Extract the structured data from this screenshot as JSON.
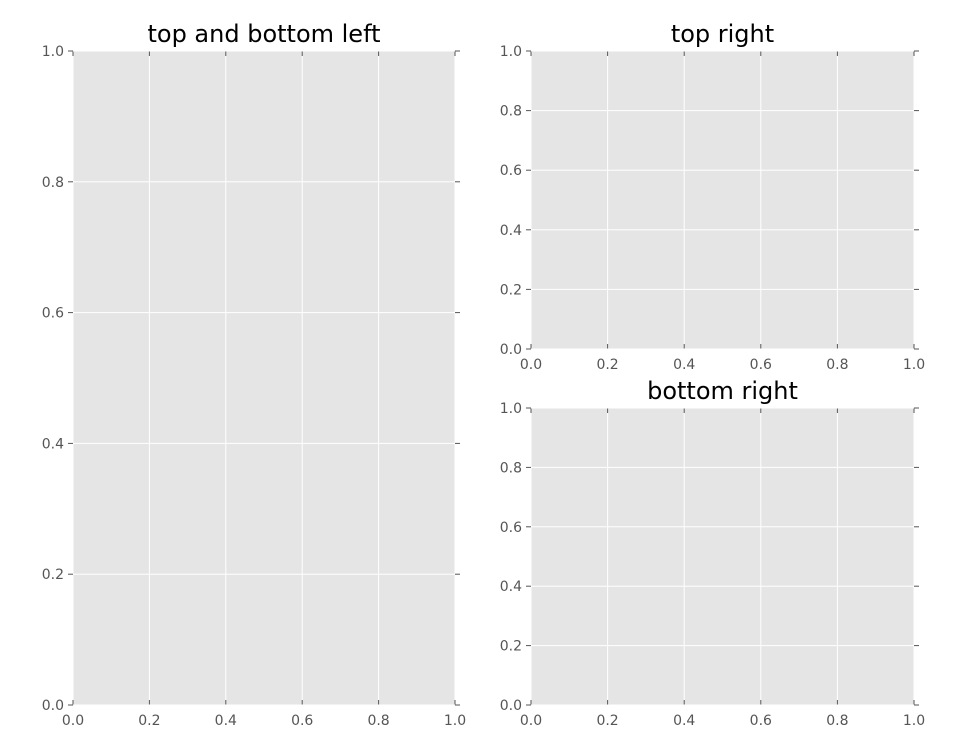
{
  "chart_data": [
    {
      "type": "line",
      "title": "top and bottom left",
      "xlabel": "",
      "ylabel": "",
      "xlim": [
        0.0,
        1.0
      ],
      "ylim": [
        0.0,
        1.0
      ],
      "x_ticks": [
        "0.0",
        "0.2",
        "0.4",
        "0.6",
        "0.8",
        "1.0"
      ],
      "y_ticks": [
        "0.0",
        "0.2",
        "0.4",
        "0.6",
        "0.8",
        "1.0"
      ],
      "grid": true,
      "series": []
    },
    {
      "type": "line",
      "title": "top right",
      "xlabel": "",
      "ylabel": "",
      "xlim": [
        0.0,
        1.0
      ],
      "ylim": [
        0.0,
        1.0
      ],
      "x_ticks": [
        "0.0",
        "0.2",
        "0.4",
        "0.6",
        "0.8",
        "1.0"
      ],
      "y_ticks": [
        "0.0",
        "0.2",
        "0.4",
        "0.6",
        "0.8",
        "1.0"
      ],
      "grid": true,
      "series": []
    },
    {
      "type": "line",
      "title": "bottom right",
      "xlabel": "",
      "ylabel": "",
      "xlim": [
        0.0,
        1.0
      ],
      "ylim": [
        0.0,
        1.0
      ],
      "x_ticks": [
        "0.0",
        "0.2",
        "0.4",
        "0.6",
        "0.8",
        "1.0"
      ],
      "y_ticks": [
        "0.0",
        "0.2",
        "0.4",
        "0.6",
        "0.8",
        "1.0"
      ],
      "grid": true,
      "series": []
    }
  ],
  "colors": {
    "plot_background": "#e5e5e5",
    "grid": "#ffffff",
    "tick_text": "#555555"
  }
}
